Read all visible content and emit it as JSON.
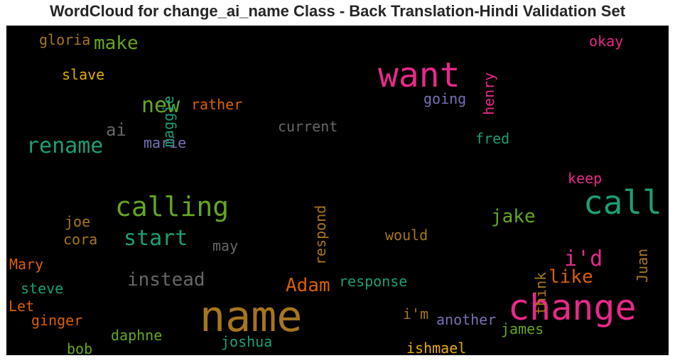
{
  "chart_data": {
    "type": "wordcloud",
    "title": "WordCloud for change_ai_name Class - Back Translation-Hindi Validation Set",
    "background": "#000000",
    "words": [
      {
        "text": "name",
        "color": "#a6761d"
      },
      {
        "text": "change",
        "color": "#e7298a"
      },
      {
        "text": "want",
        "color": "#e7298a"
      },
      {
        "text": "call",
        "color": "#1b9e77"
      },
      {
        "text": "calling",
        "color": "#66a61e"
      },
      {
        "text": "rename",
        "color": "#1b9e77"
      },
      {
        "text": "start",
        "color": "#1b9e77"
      },
      {
        "text": "new",
        "color": "#66a61e"
      },
      {
        "text": "i'd",
        "color": "#e7298a"
      },
      {
        "text": "make",
        "color": "#66a61e"
      },
      {
        "text": "Adam",
        "color": "#d95f02"
      },
      {
        "text": "instead",
        "color": "#666666"
      },
      {
        "text": "like",
        "color": "#d95f02"
      },
      {
        "text": "jake",
        "color": "#66a61e"
      },
      {
        "text": "ai",
        "color": "#666666"
      },
      {
        "text": "rather",
        "color": "#d95f02"
      },
      {
        "text": "current",
        "color": "#666666"
      },
      {
        "text": "going",
        "color": "#7570b3"
      },
      {
        "text": "fred",
        "color": "#1b9e77"
      },
      {
        "text": "marie",
        "color": "#7570b3"
      },
      {
        "text": "keep",
        "color": "#e7298a"
      },
      {
        "text": "okay",
        "color": "#e7298a"
      },
      {
        "text": "gloria",
        "color": "#a6761d"
      },
      {
        "text": "slave",
        "color": "#e6ab02"
      },
      {
        "text": "maggie",
        "color": "#1b9e77"
      },
      {
        "text": "henry",
        "color": "#e7298a"
      },
      {
        "text": "respond",
        "color": "#a6761d"
      },
      {
        "text": "think",
        "color": "#a6761d"
      },
      {
        "text": "Juan",
        "color": "#a6761d"
      },
      {
        "text": "joe",
        "color": "#a6761d"
      },
      {
        "text": "cora",
        "color": "#a6761d"
      },
      {
        "text": "may",
        "color": "#666666"
      },
      {
        "text": "would",
        "color": "#a6761d"
      },
      {
        "text": "Mary",
        "color": "#d95f02"
      },
      {
        "text": "steve",
        "color": "#1b9e77"
      },
      {
        "text": "Let",
        "color": "#d95f02"
      },
      {
        "text": "ginger",
        "color": "#d95f02"
      },
      {
        "text": "response",
        "color": "#1b9e77"
      },
      {
        "text": "i'm",
        "color": "#a6761d"
      },
      {
        "text": "another",
        "color": "#7570b3"
      },
      {
        "text": "james",
        "color": "#66a61e"
      },
      {
        "text": "daphne",
        "color": "#66a61e"
      },
      {
        "text": "joshua",
        "color": "#1b9e77"
      },
      {
        "text": "bob",
        "color": "#66a61e"
      },
      {
        "text": "ishmael",
        "color": "#e6ab02"
      }
    ]
  }
}
